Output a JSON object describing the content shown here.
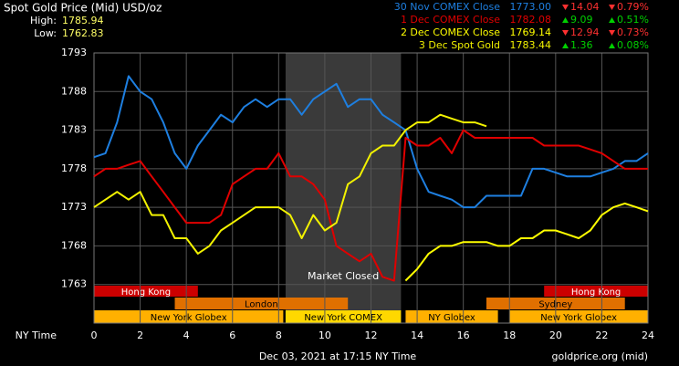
{
  "chart_data": {
    "type": "line",
    "title": "Spot Gold Price (Mid) USD/oz",
    "high_label": "High:",
    "high": "1785.94",
    "low_label": "Low:",
    "low": "1762.83",
    "xlabel": "NY Time",
    "footer": "Dec 03, 2021 at 17:15 NY Time",
    "source": "goldprice.org (mid)",
    "x": [
      0,
      0.5,
      1,
      1.5,
      2,
      2.5,
      3,
      3.5,
      4,
      4.5,
      5,
      5.5,
      6,
      6.5,
      7,
      7.5,
      8,
      8.5,
      9,
      9.5,
      10,
      10.5,
      11,
      11.5,
      12,
      12.5,
      13,
      13.5,
      14,
      14.5,
      15,
      15.5,
      16,
      16.5,
      17,
      17.5,
      18,
      18.5,
      19,
      19.5,
      20,
      20.5,
      21,
      21.5,
      22,
      22.5,
      23,
      23.5,
      24
    ],
    "xlim": [
      0,
      24
    ],
    "xticks": [
      0,
      2,
      4,
      6,
      8,
      10,
      12,
      14,
      16,
      18,
      20,
      22,
      24
    ],
    "ylim": [
      1758,
      1793
    ],
    "yticks": [
      1763,
      1768,
      1773,
      1778,
      1783,
      1788,
      1793
    ],
    "grid": true,
    "series": [
      {
        "name": "30 Nov COMEX Close",
        "color": "#1e7fe0",
        "close": "1773.00",
        "change": "14.04",
        "percent": "0.79%",
        "direction": "down",
        "values": [
          1779.5,
          1780,
          1784,
          1790,
          1788,
          1787,
          1784,
          1780,
          1778,
          1781,
          1783,
          1785,
          1784,
          1786,
          1787,
          1786,
          1787,
          1787,
          1785,
          1787,
          1788,
          1789,
          1786,
          1787,
          1787,
          1785,
          1784,
          1783,
          1778,
          1775,
          1774.5,
          1774,
          1773,
          1773,
          1774.5,
          1774.5,
          1774.5,
          1774.5,
          1778,
          1778,
          1777.5,
          1777,
          1777,
          1777,
          1777.5,
          1778,
          1779,
          1779,
          1780
        ]
      },
      {
        "name": "1 Dec COMEX Close",
        "color": "#e00000",
        "close": "1782.08",
        "change": "9.09",
        "percent": "0.51%",
        "direction": "up",
        "values": [
          1777,
          1778,
          1778,
          1778.5,
          1779,
          1777,
          1775,
          1773,
          1771,
          1771,
          1771,
          1772,
          1776,
          1777,
          1778,
          1778,
          1780,
          1777,
          1777,
          1776,
          1774,
          1768,
          1767,
          1766,
          1767,
          1764,
          1763.5,
          1782,
          1781,
          1781,
          1782,
          1780,
          1783,
          1782,
          1782,
          1782,
          1782,
          1782,
          1782,
          1781,
          1781,
          1781,
          1781,
          1780.5,
          1780,
          1779,
          1778,
          1778,
          1778
        ]
      },
      {
        "name": "2 Dec COMEX Close",
        "color": "#ffff00",
        "close": "1769.14",
        "change": "12.94",
        "percent": "0.73%",
        "direction": "down",
        "values": [
          null,
          null,
          null,
          null,
          null,
          null,
          null,
          null,
          null,
          null,
          null,
          null,
          null,
          null,
          null,
          null,
          null,
          null,
          null,
          null,
          null,
          null,
          null,
          null,
          null,
          null,
          null,
          1763.5,
          1765,
          1767,
          1768,
          1768,
          1768.5,
          1768.5,
          1768.5,
          1768,
          1768,
          1769,
          1769,
          1770,
          1770,
          1769.5,
          1769,
          1770,
          1772,
          1773,
          1773.5,
          1773,
          1772.5
        ]
      },
      {
        "name": "3 Dec Spot Gold",
        "color": "#f2f200",
        "close": "1783.44",
        "change": "1.36",
        "percent": "0.08%",
        "direction": "up",
        "values": [
          1773,
          1774,
          1775,
          1774,
          1775,
          1772,
          1772,
          1769,
          1769,
          1767,
          1768,
          1770,
          1771,
          1772,
          1773,
          1773,
          1773,
          1772,
          1769,
          1772,
          1770,
          1771,
          1776,
          1777,
          1780,
          1781,
          1781,
          1783,
          1784,
          1784,
          1785,
          1784.5,
          1784,
          1784,
          1783.5,
          null,
          null,
          null,
          null,
          null,
          null,
          null,
          null,
          null,
          null,
          null,
          null,
          null,
          null
        ]
      }
    ],
    "market_closed": {
      "label": "Market Closed",
      "start": 8.3,
      "end": 13.3
    },
    "sessions": [
      {
        "name": "Hong Kong",
        "start": 0,
        "end": 4.5,
        "row": 0,
        "color": "#cc0000"
      },
      {
        "name": "Hong Kong",
        "start": 19.5,
        "end": 24,
        "row": 0,
        "color": "#cc0000"
      },
      {
        "name": "London",
        "start": 3.5,
        "end": 11,
        "row": 1,
        "color": "#e07000"
      },
      {
        "name": "Sydney",
        "start": 17,
        "end": 23,
        "row": 1,
        "color": "#e07000"
      },
      {
        "name": "New York Globex",
        "start": 0,
        "end": 8.2,
        "row": 2,
        "color": "#ffb000"
      },
      {
        "name": "New York COMEX",
        "start": 8.3,
        "end": 13.3,
        "row": 2,
        "color": "#ffd800"
      },
      {
        "name": "NY Globex",
        "start": 13.5,
        "end": 17.5,
        "row": 2,
        "color": "#ffb000"
      },
      {
        "name": "New York Globex",
        "start": 18,
        "end": 24,
        "row": 2,
        "color": "#ffb000"
      }
    ]
  }
}
